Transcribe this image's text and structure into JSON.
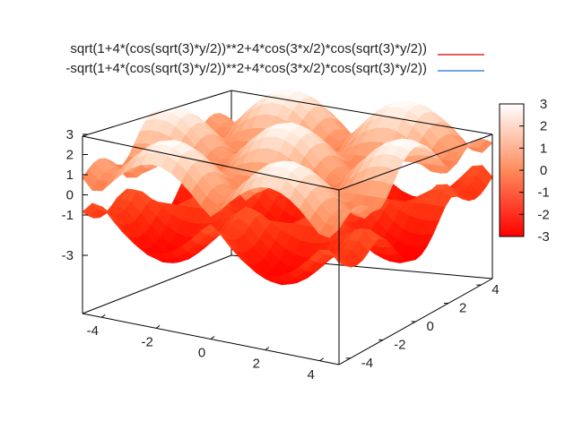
{
  "chart_data": {
    "type": "surface",
    "title": "",
    "series": [
      {
        "name": "sqrt(1+4*(cos(sqrt(3)*y/2))**2+4*cos(3*x/2)*cos(sqrt(3)*y/2))",
        "sign": 1,
        "key_color": "#cc0000"
      },
      {
        "name": "-sqrt(1+4*(cos(sqrt(3)*y/2))**2+4*cos(3*x/2)*cos(sqrt(3)*y/2))",
        "sign": -1,
        "key_color": "#1f6fd1"
      }
    ],
    "x_ticks": [
      "-4",
      "-2",
      "0",
      "2",
      "4"
    ],
    "y_ticks": [
      "-4",
      "-2",
      "0",
      "2",
      "4"
    ],
    "z_ticks": [
      "-3",
      "-1",
      "0",
      "1",
      "2",
      "3"
    ],
    "colorbar_ticks": [
      "3",
      "2",
      "1",
      "0",
      "-1",
      "-2",
      "-3"
    ],
    "xlim": [
      -4.7,
      4.7
    ],
    "ylim": [
      -4.7,
      4.7
    ],
    "zlim": [
      -3,
      3
    ],
    "cblim": [
      -3,
      3
    ],
    "palette": [
      "#ff0000",
      "#ffffff"
    ],
    "grid": false,
    "legend_position": "top-right"
  }
}
